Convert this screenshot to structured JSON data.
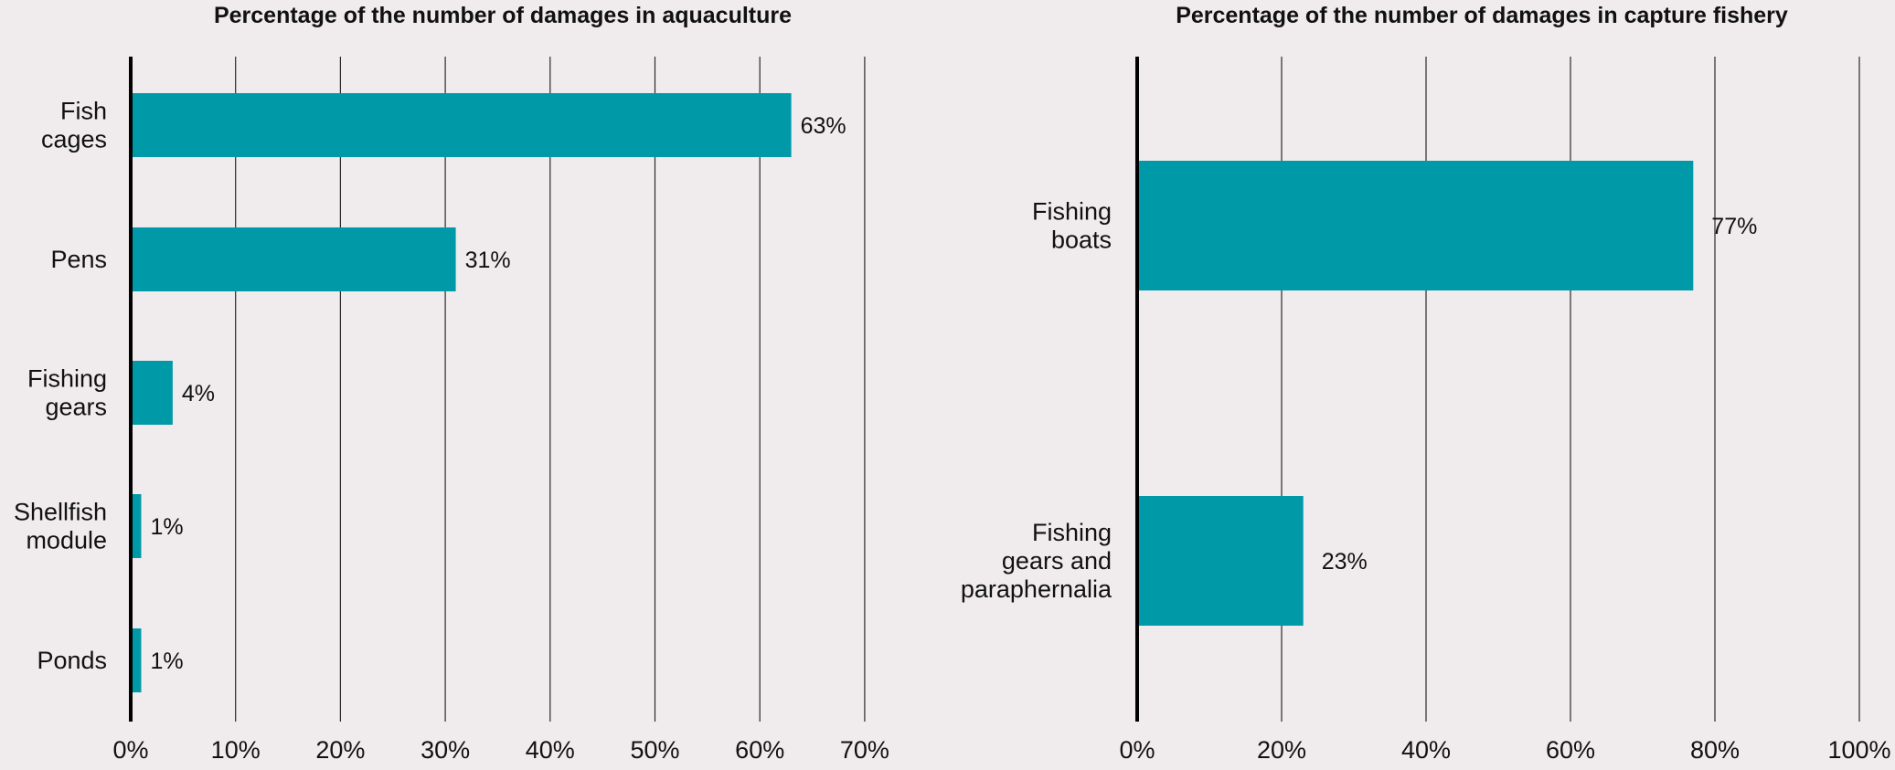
{
  "chart_data": [
    {
      "type": "bar",
      "orientation": "horizontal",
      "title": "Percentage of the number of damages in aquaculture",
      "xlabel": "",
      "ylabel": "",
      "xlim": [
        0,
        70
      ],
      "xticks": [
        0,
        10,
        20,
        30,
        40,
        50,
        60,
        70
      ],
      "tick_suffix": "%",
      "grid": "vertical",
      "bar_color": "#0099a8",
      "categories": [
        [
          "Fish",
          "cages"
        ],
        [
          "Pens"
        ],
        [
          "Fishing",
          "gears"
        ],
        [
          "Shellfish",
          "module"
        ],
        [
          "Ponds"
        ]
      ],
      "values": [
        63,
        31,
        4,
        1,
        1
      ],
      "data_labels": [
        "63%",
        "31%",
        "4%",
        "1%",
        "1%"
      ]
    },
    {
      "type": "bar",
      "orientation": "horizontal",
      "title": "Percentage of the number of damages in capture fishery",
      "xlabel": "",
      "ylabel": "",
      "xlim": [
        0,
        100
      ],
      "xticks": [
        0,
        20,
        40,
        60,
        80,
        100
      ],
      "tick_suffix": "%",
      "grid": "vertical",
      "bar_color": "#0099a8",
      "categories": [
        [
          "Fishing",
          "boats"
        ],
        [
          "Fishing",
          "gears and",
          "paraphernalia"
        ]
      ],
      "values": [
        77,
        23
      ],
      "data_labels": [
        "77%",
        "23%"
      ]
    }
  ]
}
